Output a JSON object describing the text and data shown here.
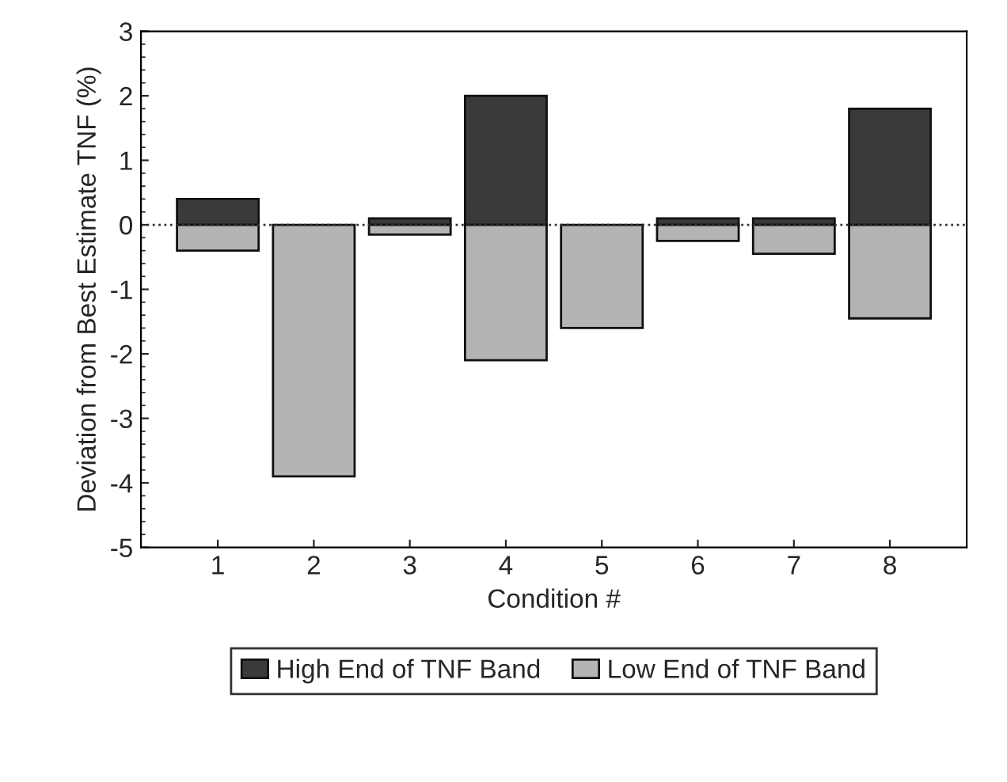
{
  "chart_data": {
    "type": "bar",
    "xlabel": "Condition #",
    "ylabel": "Deviation from Best Estimate TNF (%)",
    "categories": [
      "1",
      "2",
      "3",
      "4",
      "5",
      "6",
      "7",
      "8"
    ],
    "series": [
      {
        "name": "High End of TNF Band",
        "color": "#3a3a3a",
        "values": [
          0.4,
          null,
          0.1,
          2.0,
          null,
          0.1,
          0.1,
          1.8
        ]
      },
      {
        "name": "Low End of TNF Band",
        "color": "#b4b4b4",
        "values": [
          -0.4,
          -3.9,
          -0.15,
          -2.1,
          -1.6,
          -0.25,
          -0.45,
          -1.45
        ]
      }
    ],
    "ylim": [
      -5,
      3
    ],
    "yticks": [
      -5,
      -4,
      -3,
      -2,
      -1,
      0,
      1,
      2,
      3
    ],
    "ref_lines": [
      {
        "axis": "y",
        "value": 0,
        "line_style": "dotted",
        "color": "#333333"
      }
    ],
    "stacked": true,
    "grid": false,
    "legend": "bottom"
  }
}
